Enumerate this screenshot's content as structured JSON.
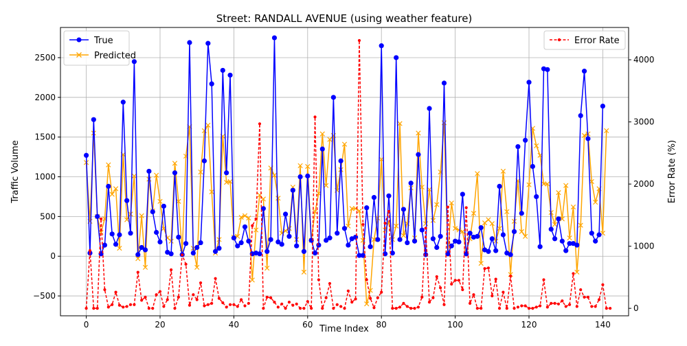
{
  "chart_data": {
    "type": "line",
    "title": "Street: RANDALL AVENUE (using weather feature)",
    "xlabel": "Time Index",
    "ylabel": "Traffic Volume",
    "y2label": "Error Rate (%)",
    "xlim": [
      -7,
      147
    ],
    "ylim": [
      -750,
      2880
    ],
    "y2lim": [
      -120,
      4520
    ],
    "xticks": [
      0,
      20,
      40,
      60,
      80,
      100,
      120,
      140
    ],
    "yticks": [
      -500,
      0,
      500,
      1000,
      1500,
      2000,
      2500
    ],
    "y2ticks": [
      0,
      1000,
      2000,
      3000,
      4000
    ],
    "grid": true,
    "legend_left": {
      "placement": "upper-left",
      "entries": [
        "True",
        "Predicted"
      ]
    },
    "legend_right": {
      "placement": "upper-right",
      "entries": [
        "Error Rate"
      ]
    },
    "series": [
      {
        "name": "True",
        "axis": "left",
        "color": "#0000ff",
        "marker": "circle",
        "linestyle": "solid",
        "values": [
          1270,
          40,
          1720,
          500,
          30,
          140,
          880,
          280,
          150,
          270,
          1940,
          700,
          290,
          2450,
          20,
          110,
          80,
          1070,
          560,
          300,
          180,
          630,
          50,
          30,
          1050,
          240,
          20,
          160,
          2690,
          40,
          110,
          170,
          1200,
          2680,
          2170,
          60,
          100,
          2340,
          1050,
          2280,
          230,
          130,
          170,
          370,
          190,
          30,
          40,
          30,
          600,
          60,
          210,
          2750,
          180,
          150,
          530,
          250,
          830,
          130,
          1000,
          60,
          1010,
          200,
          40,
          140,
          1350,
          200,
          230,
          2000,
          290,
          1200,
          350,
          140,
          220,
          240,
          10,
          10,
          610,
          120,
          740,
          210,
          2650,
          30,
          760,
          40,
          2500,
          210,
          590,
          170,
          920,
          190,
          1280,
          330,
          20,
          1860,
          220,
          110,
          250,
          2180,
          30,
          130,
          190,
          180,
          780,
          30,
          290,
          240,
          250,
          360,
          80,
          60,
          220,
          70,
          880,
          270,
          40,
          20,
          310,
          1380,
          540,
          1460,
          2190,
          1130,
          750,
          120,
          2360,
          2350,
          340,
          220,
          470,
          190,
          70,
          160,
          160,
          140,
          1770,
          2330,
          1480,
          290,
          190,
          270,
          1890
        ]
      },
      {
        "name": "Predicted",
        "axis": "left",
        "color": "#ffa500",
        "marker": "x",
        "linestyle": "solid",
        "values": [
          1180,
          440,
          1550,
          500,
          300,
          470,
          1150,
          780,
          850,
          100,
          1280,
          460,
          530,
          1010,
          -30,
          510,
          -140,
          970,
          570,
          1020,
          690,
          350,
          230,
          190,
          1170,
          690,
          50,
          1260,
          1630,
          100,
          -140,
          1060,
          1580,
          1650,
          810,
          40,
          210,
          1510,
          930,
          940,
          240,
          250,
          490,
          510,
          480,
          -300,
          330,
          770,
          720,
          -150,
          1110,
          1020,
          730,
          290,
          320,
          350,
          870,
          210,
          1140,
          -200,
          1130,
          200,
          560,
          790,
          1540,
          890,
          1470,
          1520,
          830,
          1090,
          1410,
          380,
          600,
          600,
          570,
          200,
          -600,
          -430,
          210,
          480,
          1220,
          330,
          430,
          210,
          380,
          1670,
          260,
          410,
          860,
          230,
          1550,
          870,
          410,
          840,
          450,
          650,
          1060,
          1680,
          30,
          670,
          350,
          330,
          310,
          60,
          220,
          540,
          1040,
          -90,
          420,
          460,
          410,
          190,
          350,
          1070,
          560,
          -230,
          440,
          950,
          310,
          250,
          900,
          1610,
          1390,
          1270,
          910,
          910,
          550,
          400,
          800,
          470,
          890,
          230,
          620,
          -200,
          390,
          1520,
          1540,
          940,
          680,
          850,
          290,
          1580
        ]
      },
      {
        "name": "Error Rate",
        "axis": "right",
        "color": "#ff0000",
        "marker": "circle-small",
        "linestyle": "dashed",
        "values": [
          0,
          930,
          0,
          0,
          1440,
          300,
          20,
          60,
          260,
          50,
          20,
          30,
          60,
          60,
          580,
          130,
          180,
          0,
          0,
          220,
          270,
          30,
          140,
          620,
          0,
          180,
          860,
          710,
          50,
          220,
          140,
          410,
          40,
          60,
          80,
          480,
          160,
          90,
          20,
          60,
          60,
          30,
          140,
          40,
          80,
          1330,
          1440,
          2970,
          0,
          180,
          170,
          100,
          20,
          70,
          0,
          100,
          50,
          70,
          0,
          0,
          110,
          0,
          3080,
          460,
          0,
          170,
          400,
          0,
          60,
          30,
          0,
          280,
          100,
          150,
          4310,
          1350,
          460,
          160,
          10,
          170,
          260,
          1370,
          1560,
          0,
          0,
          20,
          80,
          30,
          0,
          0,
          20,
          180,
          1290,
          100,
          170,
          510,
          330,
          60,
          1630,
          390,
          450,
          450,
          300,
          1620,
          80,
          220,
          0,
          0,
          640,
          650,
          200,
          470,
          0,
          260,
          0,
          520,
          0,
          20,
          40,
          40,
          0,
          0,
          20,
          40,
          460,
          20,
          80,
          80,
          70,
          120,
          30,
          60,
          560,
          30,
          300,
          180,
          180,
          30,
          30,
          140,
          380,
          0,
          0
        ]
      }
    ]
  }
}
